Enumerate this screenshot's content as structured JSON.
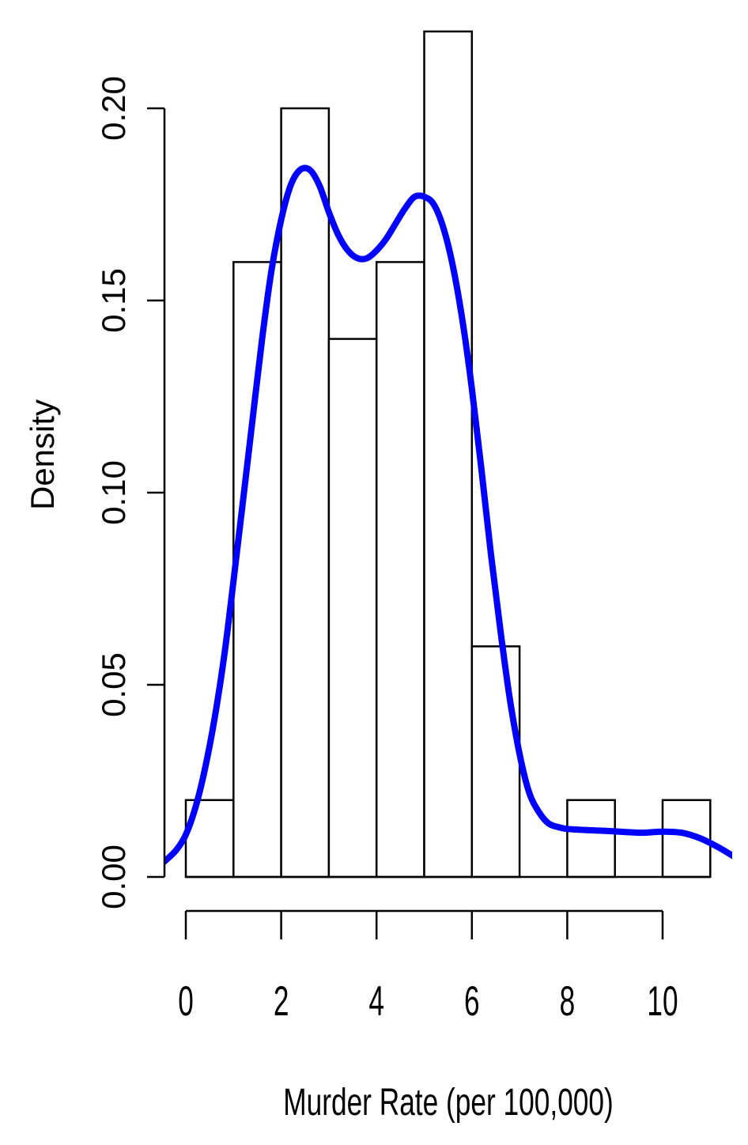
{
  "chart_data": {
    "type": "bar",
    "subtype": "histogram-with-density-curve",
    "title": "",
    "xlabel": "Murder Rate (per 100,000)",
    "ylabel": "Density",
    "bins": [
      {
        "x0": 0,
        "x1": 1,
        "density": 0.02
      },
      {
        "x0": 1,
        "x1": 2,
        "density": 0.16
      },
      {
        "x0": 2,
        "x1": 3,
        "density": 0.2
      },
      {
        "x0": 3,
        "x1": 4,
        "density": 0.14
      },
      {
        "x0": 4,
        "x1": 5,
        "density": 0.16
      },
      {
        "x0": 5,
        "x1": 6,
        "density": 0.22
      },
      {
        "x0": 6,
        "x1": 7,
        "density": 0.06
      },
      {
        "x0": 7,
        "x1": 8,
        "density": 0.0
      },
      {
        "x0": 8,
        "x1": 9,
        "density": 0.02
      },
      {
        "x0": 9,
        "x1": 10,
        "density": 0.0
      },
      {
        "x0": 10,
        "x1": 11,
        "density": 0.02
      }
    ],
    "density_curve": {
      "color": "#0000ff",
      "points": [
        [
          -0.45,
          0.004
        ],
        [
          -0.2,
          0.007
        ],
        [
          0.0,
          0.011
        ],
        [
          0.2,
          0.018
        ],
        [
          0.4,
          0.028
        ],
        [
          0.6,
          0.041
        ],
        [
          0.8,
          0.057
        ],
        [
          1.0,
          0.077
        ],
        [
          1.2,
          0.098
        ],
        [
          1.4,
          0.119
        ],
        [
          1.6,
          0.14
        ],
        [
          1.8,
          0.158
        ],
        [
          2.0,
          0.171
        ],
        [
          2.2,
          0.18
        ],
        [
          2.4,
          0.184
        ],
        [
          2.6,
          0.184
        ],
        [
          2.8,
          0.18
        ],
        [
          3.0,
          0.173
        ],
        [
          3.2,
          0.167
        ],
        [
          3.4,
          0.163
        ],
        [
          3.6,
          0.161
        ],
        [
          3.8,
          0.161
        ],
        [
          4.0,
          0.163
        ],
        [
          4.2,
          0.166
        ],
        [
          4.4,
          0.17
        ],
        [
          4.6,
          0.174
        ],
        [
          4.8,
          0.177
        ],
        [
          5.0,
          0.177
        ],
        [
          5.2,
          0.175
        ],
        [
          5.4,
          0.169
        ],
        [
          5.6,
          0.159
        ],
        [
          5.8,
          0.145
        ],
        [
          6.0,
          0.127
        ],
        [
          6.2,
          0.106
        ],
        [
          6.4,
          0.084
        ],
        [
          6.6,
          0.064
        ],
        [
          6.8,
          0.046
        ],
        [
          7.0,
          0.032
        ],
        [
          7.2,
          0.022
        ],
        [
          7.4,
          0.017
        ],
        [
          7.6,
          0.014
        ],
        [
          7.8,
          0.013
        ],
        [
          8.0,
          0.0125
        ],
        [
          8.4,
          0.0122
        ],
        [
          8.8,
          0.012
        ],
        [
          9.2,
          0.0117
        ],
        [
          9.6,
          0.0115
        ],
        [
          10.0,
          0.0118
        ],
        [
          10.4,
          0.0115
        ],
        [
          10.8,
          0.01
        ],
        [
          11.2,
          0.0075
        ],
        [
          11.6,
          0.0045
        ]
      ]
    },
    "y_axis": {
      "ticks": [
        0.0,
        0.05,
        0.1,
        0.15,
        0.2
      ],
      "tick_labels": [
        "0.00",
        "0.05",
        "0.10",
        "0.15",
        "0.20"
      ],
      "range": [
        0,
        0.22
      ]
    },
    "x_axis": {
      "ticks": [
        0,
        2,
        4,
        6,
        8,
        10
      ],
      "tick_labels": [
        "0",
        "2",
        "4",
        "6",
        "8",
        "10"
      ],
      "range": [
        0,
        10
      ]
    },
    "grid": false,
    "legend": "none",
    "colors": {
      "bars_fill": "#ffffff",
      "bars_stroke": "#000000",
      "curve": "#0000ff"
    }
  }
}
